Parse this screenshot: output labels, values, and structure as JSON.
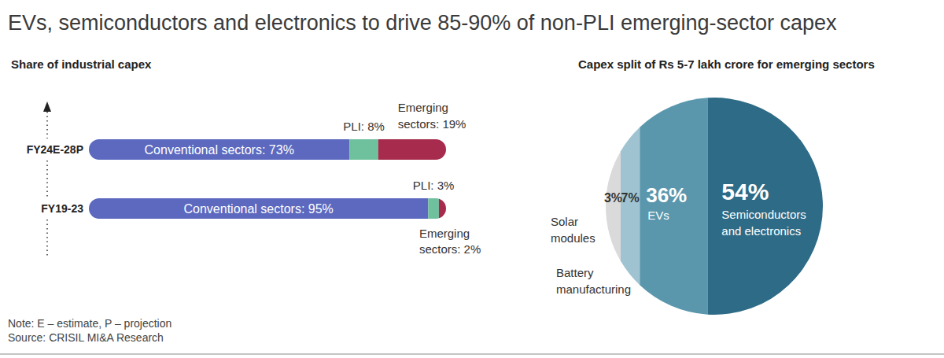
{
  "title": "EVs, semiconductors and electronics to drive 85-90% of non-PLI emerging-sector capex",
  "note": "Note: E – estimate, P – projection",
  "source": "Source: CRISIL MI&A Research",
  "chart_data": [
    {
      "type": "bar",
      "orientation": "horizontal",
      "stacked": true,
      "data_labels": true,
      "tick_labels": "y",
      "title": "Share of industrial capex",
      "categories": [
        "FY24E-28P",
        "FY19-23"
      ],
      "xlim": [
        0,
        100
      ],
      "series": [
        {
          "name": "Conventional sectors",
          "color": "#5c69bf",
          "values": [
            73,
            95
          ],
          "value_labels": [
            "Conventional sectors: 73%",
            "Conventional sectors: 95%"
          ]
        },
        {
          "name": "PLI",
          "color": "#6fc19e",
          "values": [
            8,
            3
          ],
          "value_labels": [
            "PLI: 8%",
            "PLI: 3%"
          ]
        },
        {
          "name": "Emerging sectors",
          "color": "#a62b4c",
          "values": [
            19,
            2
          ],
          "value_labels": [
            "Emerging sectors: 19%",
            "Emerging sectors: 2%"
          ]
        }
      ]
    },
    {
      "type": "pie",
      "data_labels": true,
      "title": "Capex split of Rs 5-7 lakh crore for emerging sectors",
      "categories": [
        "Semiconductors and electronics",
        "EVs",
        "Battery manufacturing",
        "Solar modules"
      ],
      "values": [
        54,
        36,
        7,
        3
      ],
      "value_labels": [
        "54%",
        "36%",
        "7%",
        "3%"
      ],
      "colors": [
        "#2e6b86",
        "#5a97ad",
        "#9fc3d1",
        "#dadada"
      ]
    }
  ]
}
